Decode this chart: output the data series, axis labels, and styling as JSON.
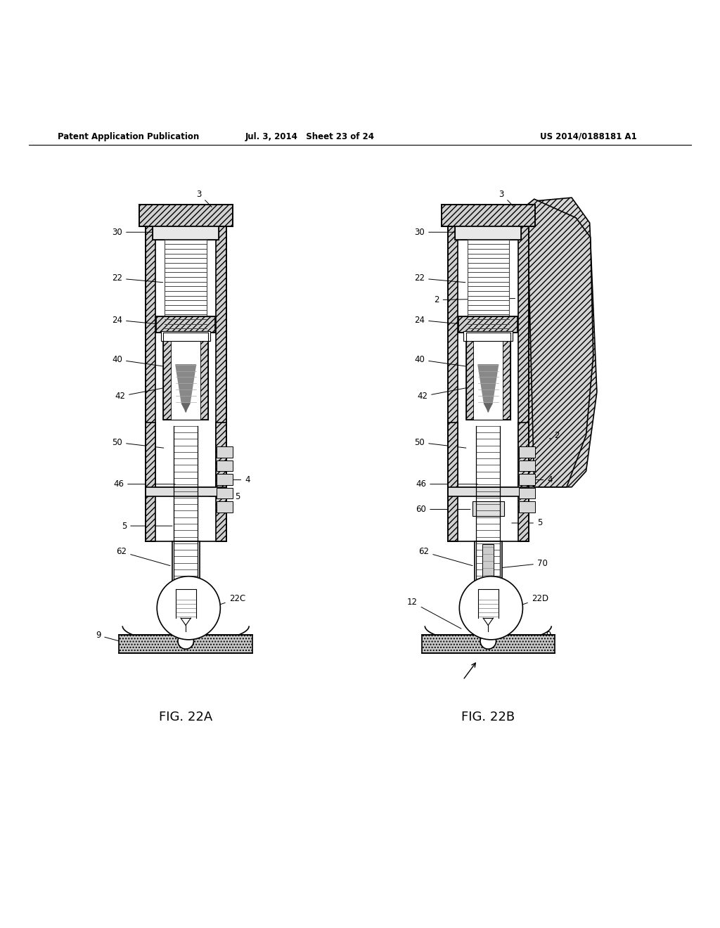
{
  "header_left": "Patent Application Publication",
  "header_mid": "Jul. 3, 2014   Sheet 23 of 24",
  "header_right": "US 2014/0188181 A1",
  "fig_a_label": "FIG. 22A",
  "fig_b_label": "FIG. 22B",
  "background_color": "#ffffff",
  "line_color": "#000000"
}
